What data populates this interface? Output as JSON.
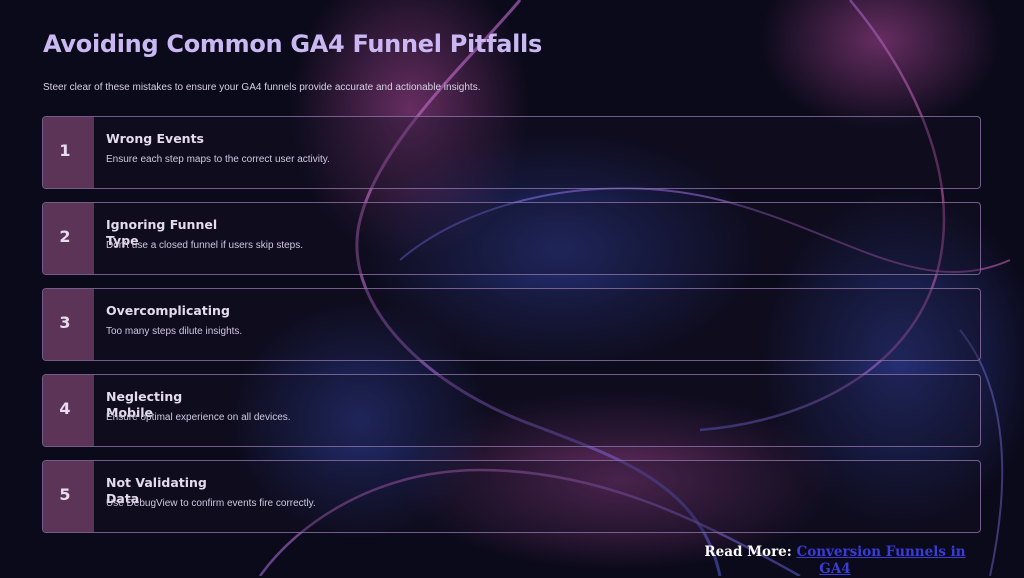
{
  "title": "Avoiding Common GA4 Funnel Pitfalls",
  "subtitle": "Steer clear of these mistakes to ensure your GA4 funnels provide accurate and actionable insights.",
  "items": [
    {
      "number": "1",
      "title": "Wrong Events",
      "description": "Ensure each step maps to the correct user activity."
    },
    {
      "number": "2",
      "title": "Ignoring Funnel Type",
      "description": "Don't use a closed funnel if users skip steps."
    },
    {
      "number": "3",
      "title": "Overcomplicating",
      "description": "Too many steps dilute insights."
    },
    {
      "number": "4",
      "title": "Neglecting Mobile",
      "description": "Ensure optimal experience on all devices."
    },
    {
      "number": "5",
      "title": "Not Validating Data",
      "description": "Use DebugView to confirm events fire correctly."
    }
  ],
  "footer": {
    "label": "Read More: ",
    "link_text": "Conversion Funnels in GA4"
  },
  "colors": {
    "background": "#0b0a1a",
    "title": "#c9b8f2",
    "number_box": "#5c3458",
    "card_border": "#9678af",
    "link": "#3b3bd6"
  }
}
